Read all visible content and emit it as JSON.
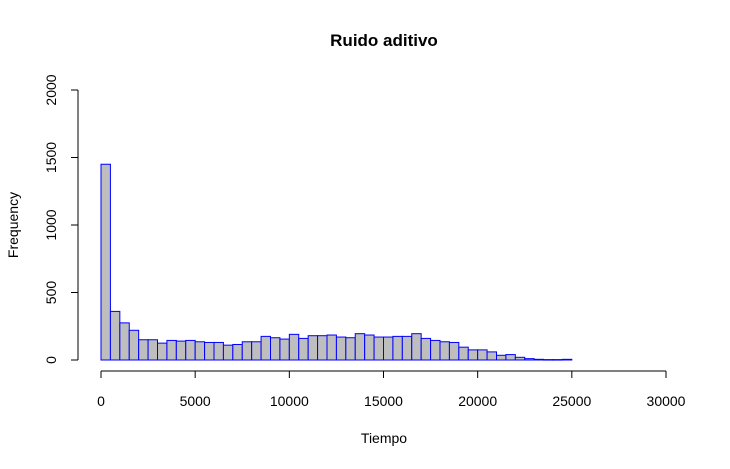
{
  "chart_data": {
    "type": "bar",
    "title": "Ruido aditivo",
    "xlabel": "Tiempo",
    "ylabel": "Frequency",
    "bin_width": 500,
    "xlim": [
      0,
      30000
    ],
    "ylim": [
      0,
      2000
    ],
    "x_ticks": [
      "0",
      "5000",
      "10000",
      "15000",
      "20000",
      "25000",
      "30000"
    ],
    "y_ticks": [
      "0",
      "500",
      "1000",
      "1500",
      "2000"
    ],
    "bar_fill": "#bebebe",
    "bar_stroke": "#0000ff",
    "values": [
      1450,
      360,
      275,
      220,
      150,
      150,
      125,
      145,
      140,
      145,
      135,
      130,
      130,
      110,
      115,
      135,
      135,
      175,
      165,
      155,
      190,
      160,
      180,
      180,
      185,
      170,
      165,
      195,
      185,
      170,
      170,
      175,
      175,
      195,
      160,
      145,
      135,
      130,
      95,
      75,
      75,
      60,
      35,
      40,
      20,
      10,
      5,
      3,
      3,
      5
    ]
  }
}
